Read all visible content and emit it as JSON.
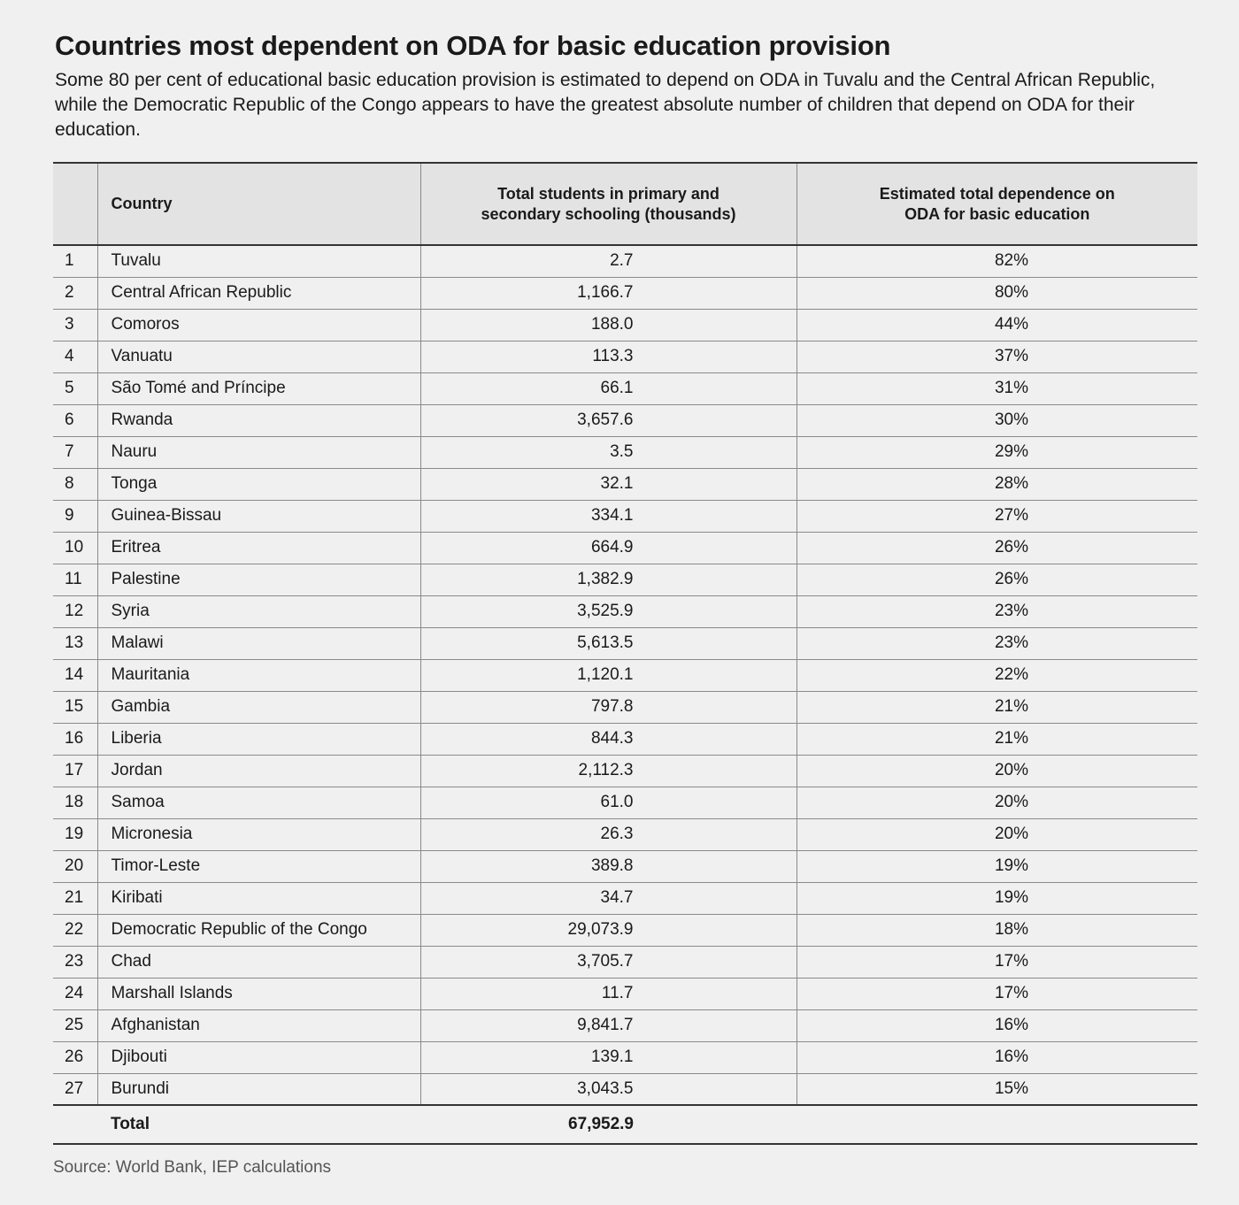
{
  "title": "Countries most dependent on ODA for basic education provision",
  "subtitle": "Some 80 per cent of educational basic education provision is estimated to depend on ODA in Tuvalu and the Central African Republic, while the Democratic Republic of the Congo appears to have the greatest absolute number of children that depend on ODA for their education.",
  "source": "Source: World Bank, IEP calculations",
  "chart_data": {
    "type": "table",
    "title": "Countries most dependent on ODA for basic education provision",
    "columns": [
      "",
      "Country",
      "Total students in primary and secondary schooling (thousands)",
      "Estimated total dependence on ODA for basic education"
    ],
    "rows": [
      [
        "1",
        "Tuvalu",
        "2.7",
        "82%"
      ],
      [
        "2",
        "Central African Republic",
        "1,166.7",
        "80%"
      ],
      [
        "3",
        "Comoros",
        "188.0",
        "44%"
      ],
      [
        "4",
        "Vanuatu",
        "113.3",
        "37%"
      ],
      [
        "5",
        "São Tomé and Príncipe",
        "66.1",
        "31%"
      ],
      [
        "6",
        "Rwanda",
        "3,657.6",
        "30%"
      ],
      [
        "7",
        "Nauru",
        "3.5",
        "29%"
      ],
      [
        "8",
        "Tonga",
        "32.1",
        "28%"
      ],
      [
        "9",
        "Guinea-Bissau",
        "334.1",
        "27%"
      ],
      [
        "10",
        "Eritrea",
        "664.9",
        "26%"
      ],
      [
        "11",
        "Palestine",
        "1,382.9",
        "26%"
      ],
      [
        "12",
        "Syria",
        "3,525.9",
        "23%"
      ],
      [
        "13",
        "Malawi",
        "5,613.5",
        "23%"
      ],
      [
        "14",
        "Mauritania",
        "1,120.1",
        "22%"
      ],
      [
        "15",
        "Gambia",
        "797.8",
        "21%"
      ],
      [
        "16",
        "Liberia",
        "844.3",
        "21%"
      ],
      [
        "17",
        "Jordan",
        "2,112.3",
        "20%"
      ],
      [
        "18",
        "Samoa",
        "61.0",
        "20%"
      ],
      [
        "19",
        "Micronesia",
        "26.3",
        "20%"
      ],
      [
        "20",
        "Timor-Leste",
        "389.8",
        "19%"
      ],
      [
        "21",
        "Kiribati",
        "34.7",
        "19%"
      ],
      [
        "22",
        "Democratic Republic of the Congo",
        "29,073.9",
        "18%"
      ],
      [
        "23",
        "Chad",
        "3,705.7",
        "17%"
      ],
      [
        "24",
        "Marshall Islands",
        "11.7",
        "17%"
      ],
      [
        "25",
        "Afghanistan",
        "9,841.7",
        "16%"
      ],
      [
        "26",
        "Djibouti",
        "139.1",
        "16%"
      ],
      [
        "27",
        "Burundi",
        "3,043.5",
        "15%"
      ]
    ],
    "total": {
      "label": "Total",
      "students": "67,952.9"
    }
  }
}
